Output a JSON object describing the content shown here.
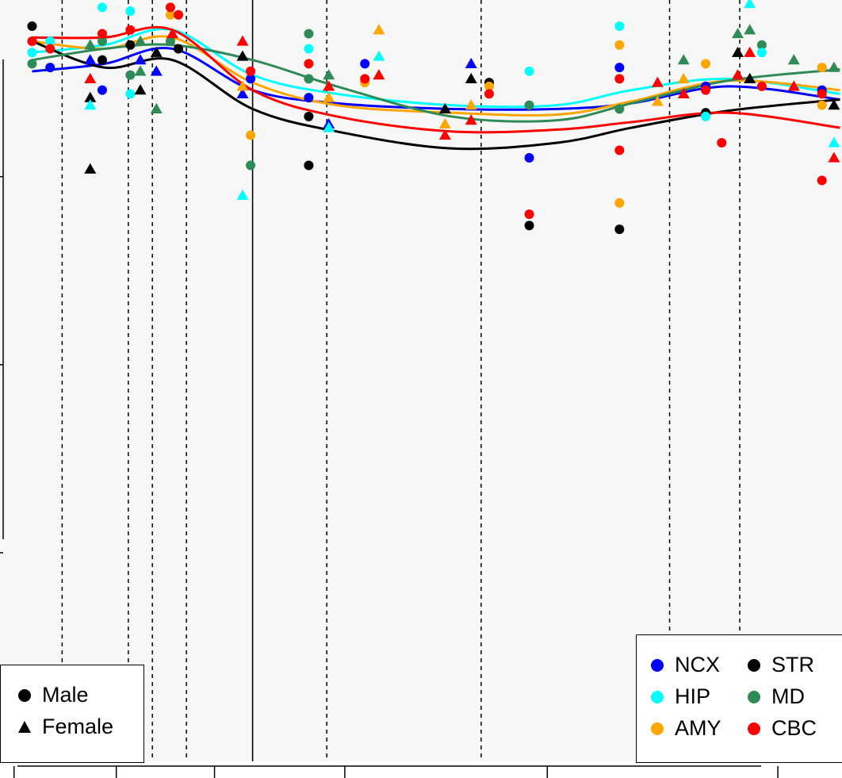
{
  "chart_data": {
    "type": "scatter",
    "title": "",
    "xlabel": "",
    "ylabel": "",
    "grid": false,
    "x_range": [
      0,
      42
    ],
    "y_range": [
      0,
      21
    ],
    "period_boundaries": [
      3.1,
      6.4,
      7.6,
      9.3,
      12.6,
      16.3,
      24.0,
      33.4,
      36.9
    ],
    "period_divider_solid": 12.6,
    "x_ticks": [
      0.7,
      5.8,
      10.7,
      17.2,
      27.3,
      38.8
    ],
    "y_ticks": [
      2,
      7,
      12,
      17
    ],
    "colors": {
      "NCX": "#0000ff",
      "HIP": "#00ffff",
      "AMY": "#ffa500",
      "STR": "#000000",
      "MD": "#2e8b57",
      "CBC": "#ff0000"
    },
    "series": [
      {
        "name": "NCX",
        "color": "#0000ff",
        "smooth": [
          [
            1.6,
            19.8
          ],
          [
            5.2,
            20.0
          ],
          [
            8.6,
            20.4
          ],
          [
            12.6,
            19.3
          ],
          [
            16.8,
            18.95
          ],
          [
            22.5,
            18.8
          ],
          [
            27.8,
            18.8
          ],
          [
            31.5,
            18.95
          ],
          [
            36.3,
            19.4
          ],
          [
            41.9,
            19.05
          ]
        ]
      },
      {
        "name": "HIP",
        "color": "#00ffff",
        "smooth": [
          [
            1.6,
            20.3
          ],
          [
            5.2,
            20.5
          ],
          [
            8.6,
            20.9
          ],
          [
            12.6,
            19.7
          ],
          [
            16.8,
            19.2
          ],
          [
            22.5,
            18.9
          ],
          [
            27.8,
            18.9
          ],
          [
            31.5,
            19.3
          ],
          [
            36.3,
            19.6
          ],
          [
            41.9,
            19.2
          ]
        ]
      },
      {
        "name": "AMY",
        "color": "#ffa500",
        "smooth": [
          [
            1.6,
            20.6
          ],
          [
            5.2,
            20.4
          ],
          [
            8.6,
            20.7
          ],
          [
            12.6,
            19.5
          ],
          [
            16.8,
            18.9
          ],
          [
            22.5,
            18.7
          ],
          [
            27.8,
            18.65
          ],
          [
            31.5,
            19.0
          ],
          [
            36.3,
            19.55
          ],
          [
            41.9,
            19.3
          ]
        ]
      },
      {
        "name": "STR",
        "color": "#000000",
        "smooth": [
          [
            1.6,
            20.6
          ],
          [
            5.2,
            19.9
          ],
          [
            8.6,
            20.1
          ],
          [
            12.6,
            18.8
          ],
          [
            16.8,
            18.2
          ],
          [
            22.5,
            17.75
          ],
          [
            27.8,
            17.9
          ],
          [
            31.5,
            18.3
          ],
          [
            36.3,
            18.75
          ],
          [
            41.9,
            19.05
          ]
        ]
      },
      {
        "name": "MD",
        "color": "#2e8b57",
        "smooth": [
          [
            1.6,
            20.1
          ],
          [
            5.2,
            20.4
          ],
          [
            8.6,
            20.5
          ],
          [
            12.6,
            20.1
          ],
          [
            16.8,
            19.4
          ],
          [
            22.5,
            18.6
          ],
          [
            27.8,
            18.5
          ],
          [
            31.5,
            18.95
          ],
          [
            36.3,
            19.55
          ],
          [
            41.9,
            19.85
          ]
        ]
      },
      {
        "name": "CBC",
        "color": "#ff0000",
        "smooth": [
          [
            1.6,
            20.7
          ],
          [
            5.2,
            20.7
          ],
          [
            8.6,
            20.9
          ],
          [
            12.6,
            19.3
          ],
          [
            16.8,
            18.6
          ],
          [
            22.5,
            18.2
          ],
          [
            27.8,
            18.25
          ],
          [
            31.5,
            18.45
          ],
          [
            36.3,
            18.7
          ],
          [
            41.9,
            18.3
          ]
        ]
      }
    ],
    "points": [
      {
        "x": 1.6,
        "y": 21.0,
        "shape": "circle",
        "region": "STR"
      },
      {
        "x": 1.6,
        "y": 20.3,
        "shape": "circle",
        "region": "HIP"
      },
      {
        "x": 1.6,
        "y": 20.0,
        "shape": "circle",
        "region": "MD"
      },
      {
        "x": 1.6,
        "y": 20.6,
        "shape": "circle",
        "region": "CBC"
      },
      {
        "x": 2.5,
        "y": 20.6,
        "shape": "circle",
        "region": "HIP"
      },
      {
        "x": 2.5,
        "y": 19.9,
        "shape": "circle",
        "region": "NCX"
      },
      {
        "x": 2.5,
        "y": 20.4,
        "shape": "circle",
        "region": "CBC"
      },
      {
        "x": 4.5,
        "y": 20.5,
        "shape": "triangle",
        "region": "MD"
      },
      {
        "x": 4.5,
        "y": 20.1,
        "shape": "triangle",
        "region": "NCX"
      },
      {
        "x": 4.5,
        "y": 19.6,
        "shape": "triangle",
        "region": "CBC"
      },
      {
        "x": 4.5,
        "y": 19.1,
        "shape": "triangle",
        "region": "STR"
      },
      {
        "x": 4.5,
        "y": 18.9,
        "shape": "triangle",
        "region": "HIP"
      },
      {
        "x": 4.5,
        "y": 17.2,
        "shape": "triangle",
        "region": "STR"
      },
      {
        "x": 5.1,
        "y": 21.5,
        "shape": "circle",
        "region": "HIP"
      },
      {
        "x": 5.1,
        "y": 20.6,
        "shape": "circle",
        "region": "MD"
      },
      {
        "x": 5.1,
        "y": 20.1,
        "shape": "circle",
        "region": "STR"
      },
      {
        "x": 5.1,
        "y": 19.3,
        "shape": "circle",
        "region": "NCX"
      },
      {
        "x": 5.1,
        "y": 20.8,
        "shape": "circle",
        "region": "CBC"
      },
      {
        "x": 6.5,
        "y": 21.4,
        "shape": "circle",
        "region": "HIP"
      },
      {
        "x": 6.5,
        "y": 20.9,
        "shape": "circle",
        "region": "CBC"
      },
      {
        "x": 6.5,
        "y": 20.5,
        "shape": "circle",
        "region": "STR"
      },
      {
        "x": 6.5,
        "y": 19.7,
        "shape": "circle",
        "region": "MD"
      },
      {
        "x": 6.5,
        "y": 19.2,
        "shape": "circle",
        "region": "HIP"
      },
      {
        "x": 7.0,
        "y": 20.6,
        "shape": "triangle",
        "region": "MD"
      },
      {
        "x": 7.0,
        "y": 20.1,
        "shape": "triangle",
        "region": "NCX"
      },
      {
        "x": 7.0,
        "y": 19.8,
        "shape": "triangle",
        "region": "MD"
      },
      {
        "x": 7.0,
        "y": 19.3,
        "shape": "triangle",
        "region": "STR"
      },
      {
        "x": 7.8,
        "y": 20.3,
        "shape": "triangle",
        "region": "STR"
      },
      {
        "x": 7.8,
        "y": 19.8,
        "shape": "triangle",
        "region": "NCX"
      },
      {
        "x": 7.8,
        "y": 18.8,
        "shape": "triangle",
        "region": "MD"
      },
      {
        "x": 8.5,
        "y": 21.3,
        "shape": "circle",
        "region": "AMY"
      },
      {
        "x": 8.5,
        "y": 21.5,
        "shape": "circle",
        "region": "CBC"
      },
      {
        "x": 8.5,
        "y": 20.6,
        "shape": "circle",
        "region": "MD"
      },
      {
        "x": 8.9,
        "y": 21.3,
        "shape": "circle",
        "region": "CBC"
      },
      {
        "x": 8.9,
        "y": 20.4,
        "shape": "circle",
        "region": "STR"
      },
      {
        "x": 8.6,
        "y": 20.8,
        "shape": "triangle",
        "region": "CBC"
      },
      {
        "x": 12.1,
        "y": 19.2,
        "shape": "triangle",
        "region": "NCX"
      },
      {
        "x": 12.1,
        "y": 19.4,
        "shape": "triangle",
        "region": "AMY"
      },
      {
        "x": 12.1,
        "y": 16.5,
        "shape": "triangle",
        "region": "HIP"
      },
      {
        "x": 12.1,
        "y": 20.2,
        "shape": "triangle",
        "region": "STR"
      },
      {
        "x": 12.1,
        "y": 20.6,
        "shape": "triangle",
        "region": "CBC"
      },
      {
        "x": 12.5,
        "y": 18.1,
        "shape": "circle",
        "region": "AMY"
      },
      {
        "x": 12.5,
        "y": 17.3,
        "shape": "circle",
        "region": "MD"
      },
      {
        "x": 12.5,
        "y": 19.6,
        "shape": "circle",
        "region": "NCX"
      },
      {
        "x": 12.5,
        "y": 19.8,
        "shape": "circle",
        "region": "CBC"
      },
      {
        "x": 15.4,
        "y": 20.8,
        "shape": "circle",
        "region": "MD"
      },
      {
        "x": 15.4,
        "y": 20.4,
        "shape": "circle",
        "region": "HIP"
      },
      {
        "x": 15.4,
        "y": 19.6,
        "shape": "circle",
        "region": "MD"
      },
      {
        "x": 15.4,
        "y": 19.1,
        "shape": "circle",
        "region": "NCX"
      },
      {
        "x": 15.4,
        "y": 18.6,
        "shape": "circle",
        "region": "STR"
      },
      {
        "x": 15.4,
        "y": 17.3,
        "shape": "circle",
        "region": "STR"
      },
      {
        "x": 15.4,
        "y": 20.0,
        "shape": "circle",
        "region": "CBC"
      },
      {
        "x": 16.4,
        "y": 19.7,
        "shape": "triangle",
        "region": "MD"
      },
      {
        "x": 16.4,
        "y": 19.1,
        "shape": "triangle",
        "region": "AMY"
      },
      {
        "x": 16.4,
        "y": 18.4,
        "shape": "triangle",
        "region": "NCX"
      },
      {
        "x": 16.4,
        "y": 18.3,
        "shape": "triangle",
        "region": "HIP"
      },
      {
        "x": 16.4,
        "y": 19.4,
        "shape": "triangle",
        "region": "CBC"
      },
      {
        "x": 18.2,
        "y": 20.0,
        "shape": "circle",
        "region": "NCX"
      },
      {
        "x": 18.2,
        "y": 19.5,
        "shape": "circle",
        "region": "AMY"
      },
      {
        "x": 18.2,
        "y": 19.6,
        "shape": "circle",
        "region": "CBC"
      },
      {
        "x": 18.9,
        "y": 20.9,
        "shape": "triangle",
        "region": "AMY"
      },
      {
        "x": 18.9,
        "y": 20.2,
        "shape": "triangle",
        "region": "HIP"
      },
      {
        "x": 18.9,
        "y": 19.7,
        "shape": "triangle",
        "region": "CBC"
      },
      {
        "x": 22.2,
        "y": 18.8,
        "shape": "triangle",
        "region": "STR"
      },
      {
        "x": 22.2,
        "y": 18.4,
        "shape": "triangle",
        "region": "AMY"
      },
      {
        "x": 22.2,
        "y": 18.1,
        "shape": "triangle",
        "region": "CBC"
      },
      {
        "x": 23.5,
        "y": 20.0,
        "shape": "triangle",
        "region": "NCX"
      },
      {
        "x": 23.5,
        "y": 19.6,
        "shape": "triangle",
        "region": "STR"
      },
      {
        "x": 23.5,
        "y": 18.9,
        "shape": "triangle",
        "region": "AMY"
      },
      {
        "x": 23.5,
        "y": 18.5,
        "shape": "triangle",
        "region": "CBC"
      },
      {
        "x": 24.4,
        "y": 19.5,
        "shape": "circle",
        "region": "STR"
      },
      {
        "x": 24.4,
        "y": 19.4,
        "shape": "circle",
        "region": "AMY"
      },
      {
        "x": 24.4,
        "y": 19.2,
        "shape": "circle",
        "region": "CBC"
      },
      {
        "x": 26.4,
        "y": 19.8,
        "shape": "circle",
        "region": "HIP"
      },
      {
        "x": 26.4,
        "y": 18.9,
        "shape": "circle",
        "region": "MD"
      },
      {
        "x": 26.4,
        "y": 17.5,
        "shape": "circle",
        "region": "NCX"
      },
      {
        "x": 26.4,
        "y": 16.0,
        "shape": "circle",
        "region": "CBC"
      },
      {
        "x": 26.4,
        "y": 15.7,
        "shape": "circle",
        "region": "STR"
      },
      {
        "x": 30.9,
        "y": 21.0,
        "shape": "circle",
        "region": "HIP"
      },
      {
        "x": 30.9,
        "y": 20.5,
        "shape": "circle",
        "region": "AMY"
      },
      {
        "x": 30.9,
        "y": 19.9,
        "shape": "circle",
        "region": "NCX"
      },
      {
        "x": 30.9,
        "y": 19.6,
        "shape": "circle",
        "region": "CBC"
      },
      {
        "x": 30.9,
        "y": 18.8,
        "shape": "circle",
        "region": "MD"
      },
      {
        "x": 30.9,
        "y": 17.7,
        "shape": "circle",
        "region": "CBC"
      },
      {
        "x": 30.9,
        "y": 16.3,
        "shape": "circle",
        "region": "AMY"
      },
      {
        "x": 30.9,
        "y": 15.6,
        "shape": "circle",
        "region": "STR"
      },
      {
        "x": 32.8,
        "y": 19.5,
        "shape": "triangle",
        "region": "CBC"
      },
      {
        "x": 32.8,
        "y": 19.0,
        "shape": "triangle",
        "region": "AMY"
      },
      {
        "x": 34.1,
        "y": 20.1,
        "shape": "triangle",
        "region": "MD"
      },
      {
        "x": 34.1,
        "y": 19.6,
        "shape": "triangle",
        "region": "AMY"
      },
      {
        "x": 34.1,
        "y": 19.2,
        "shape": "triangle",
        "region": "CBC"
      },
      {
        "x": 35.2,
        "y": 20.0,
        "shape": "circle",
        "region": "AMY"
      },
      {
        "x": 35.2,
        "y": 19.4,
        "shape": "circle",
        "region": "NCX"
      },
      {
        "x": 35.2,
        "y": 18.7,
        "shape": "circle",
        "region": "STR"
      },
      {
        "x": 35.2,
        "y": 18.6,
        "shape": "circle",
        "region": "HIP"
      },
      {
        "x": 35.2,
        "y": 19.3,
        "shape": "circle",
        "region": "CBC"
      },
      {
        "x": 36.0,
        "y": 17.9,
        "shape": "circle",
        "region": "CBC"
      },
      {
        "x": 36.8,
        "y": 20.8,
        "shape": "triangle",
        "region": "MD"
      },
      {
        "x": 36.8,
        "y": 20.3,
        "shape": "triangle",
        "region": "STR"
      },
      {
        "x": 36.8,
        "y": 19.7,
        "shape": "triangle",
        "region": "CBC"
      },
      {
        "x": 37.4,
        "y": 21.6,
        "shape": "triangle",
        "region": "HIP"
      },
      {
        "x": 37.4,
        "y": 20.9,
        "shape": "triangle",
        "region": "MD"
      },
      {
        "x": 37.4,
        "y": 20.3,
        "shape": "triangle",
        "region": "CBC"
      },
      {
        "x": 37.4,
        "y": 19.6,
        "shape": "triangle",
        "region": "STR"
      },
      {
        "x": 38.0,
        "y": 20.5,
        "shape": "circle",
        "region": "MD"
      },
      {
        "x": 38.0,
        "y": 20.3,
        "shape": "circle",
        "region": "HIP"
      },
      {
        "x": 38.0,
        "y": 19.4,
        "shape": "circle",
        "region": "CBC"
      },
      {
        "x": 39.6,
        "y": 20.1,
        "shape": "triangle",
        "region": "MD"
      },
      {
        "x": 39.6,
        "y": 19.4,
        "shape": "triangle",
        "region": "CBC"
      },
      {
        "x": 41.0,
        "y": 19.9,
        "shape": "circle",
        "region": "AMY"
      },
      {
        "x": 41.0,
        "y": 19.3,
        "shape": "circle",
        "region": "NCX"
      },
      {
        "x": 41.0,
        "y": 18.9,
        "shape": "circle",
        "region": "AMY"
      },
      {
        "x": 41.0,
        "y": 19.2,
        "shape": "circle",
        "region": "CBC"
      },
      {
        "x": 41.0,
        "y": 16.9,
        "shape": "circle",
        "region": "CBC"
      },
      {
        "x": 41.6,
        "y": 19.9,
        "shape": "triangle",
        "region": "MD"
      },
      {
        "x": 41.6,
        "y": 18.9,
        "shape": "triangle",
        "region": "STR"
      },
      {
        "x": 41.6,
        "y": 17.9,
        "shape": "triangle",
        "region": "HIP"
      },
      {
        "x": 41.6,
        "y": 17.5,
        "shape": "triangle",
        "region": "CBC"
      }
    ]
  },
  "legend_shape": {
    "entries": [
      {
        "label": "Male",
        "shape": "circle"
      },
      {
        "label": "Female",
        "shape": "triangle"
      }
    ]
  },
  "legend_region": {
    "entries": [
      {
        "label": "NCX",
        "color": "#0000ff"
      },
      {
        "label": "STR",
        "color": "#000000"
      },
      {
        "label": "HIP",
        "color": "#00ffff"
      },
      {
        "label": "MD",
        "color": "#2e8b57"
      },
      {
        "label": "AMY",
        "color": "#ffa500"
      },
      {
        "label": "CBC",
        "color": "#ff0000"
      }
    ]
  }
}
